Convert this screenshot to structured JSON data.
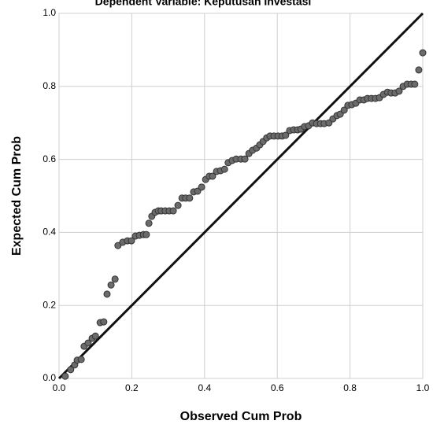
{
  "chart_data": {
    "type": "scatter",
    "title": "Dependent Variable: Keputusan Investasi",
    "xlabel": "Observed Cum Prob",
    "ylabel": "Expected Cum Prob",
    "xlim": [
      0,
      1
    ],
    "ylim": [
      0,
      1
    ],
    "xticks": [
      {
        "value": 0,
        "label": "0.0"
      },
      0.2,
      0.4,
      0.6,
      0.8,
      {
        "value": 1,
        "label": "1.0"
      }
    ],
    "yticks": [
      {
        "value": 0,
        "label": "0.0"
      },
      0.2,
      0.4,
      0.6,
      0.8,
      {
        "value": 1,
        "label": "1.0"
      }
    ],
    "grid": true,
    "color": "#6b6b6b",
    "x": [
      0.017,
      0.032,
      0.043,
      0.05,
      0.061,
      0.069,
      0.08,
      0.091,
      0.1,
      0.113,
      0.123,
      0.132,
      0.143,
      0.154,
      0.162,
      0.175,
      0.188,
      0.199,
      0.21,
      0.221,
      0.232,
      0.24,
      0.247,
      0.255,
      0.264,
      0.273,
      0.281,
      0.292,
      0.303,
      0.314,
      0.327,
      0.338,
      0.348,
      0.359,
      0.37,
      0.381,
      0.392,
      0.403,
      0.413,
      0.422,
      0.433,
      0.444,
      0.455,
      0.465,
      0.476,
      0.487,
      0.5,
      0.511,
      0.522,
      0.532,
      0.543,
      0.552,
      0.561,
      0.571,
      0.58,
      0.591,
      0.602,
      0.613,
      0.623,
      0.634,
      0.645,
      0.656,
      0.665,
      0.675,
      0.686,
      0.697,
      0.708,
      0.719,
      0.729,
      0.742,
      0.753,
      0.764,
      0.773,
      0.784,
      0.794,
      0.805,
      0.816,
      0.827,
      0.838,
      0.848,
      0.859,
      0.87,
      0.881,
      0.892,
      0.903,
      0.913,
      0.924,
      0.935,
      0.946,
      0.957,
      0.968,
      0.978,
      0.989,
      1.0
    ],
    "values": [
      0.006,
      0.024,
      0.037,
      0.05,
      0.052,
      0.088,
      0.097,
      0.11,
      0.116,
      0.153,
      0.155,
      0.231,
      0.256,
      0.272,
      0.364,
      0.373,
      0.377,
      0.377,
      0.39,
      0.392,
      0.394,
      0.394,
      0.425,
      0.444,
      0.455,
      0.459,
      0.459,
      0.459,
      0.459,
      0.459,
      0.474,
      0.494,
      0.494,
      0.494,
      0.511,
      0.513,
      0.524,
      0.545,
      0.554,
      0.554,
      0.567,
      0.569,
      0.573,
      0.591,
      0.597,
      0.601,
      0.601,
      0.601,
      0.616,
      0.625,
      0.631,
      0.64,
      0.649,
      0.659,
      0.664,
      0.664,
      0.664,
      0.664,
      0.666,
      0.679,
      0.681,
      0.681,
      0.683,
      0.69,
      0.692,
      0.7,
      0.698,
      0.698,
      0.698,
      0.7,
      0.711,
      0.72,
      0.724,
      0.735,
      0.748,
      0.75,
      0.754,
      0.763,
      0.763,
      0.767,
      0.767,
      0.767,
      0.769,
      0.778,
      0.784,
      0.782,
      0.782,
      0.787,
      0.8,
      0.806,
      0.806,
      0.806,
      0.845,
      0.892
    ]
  }
}
